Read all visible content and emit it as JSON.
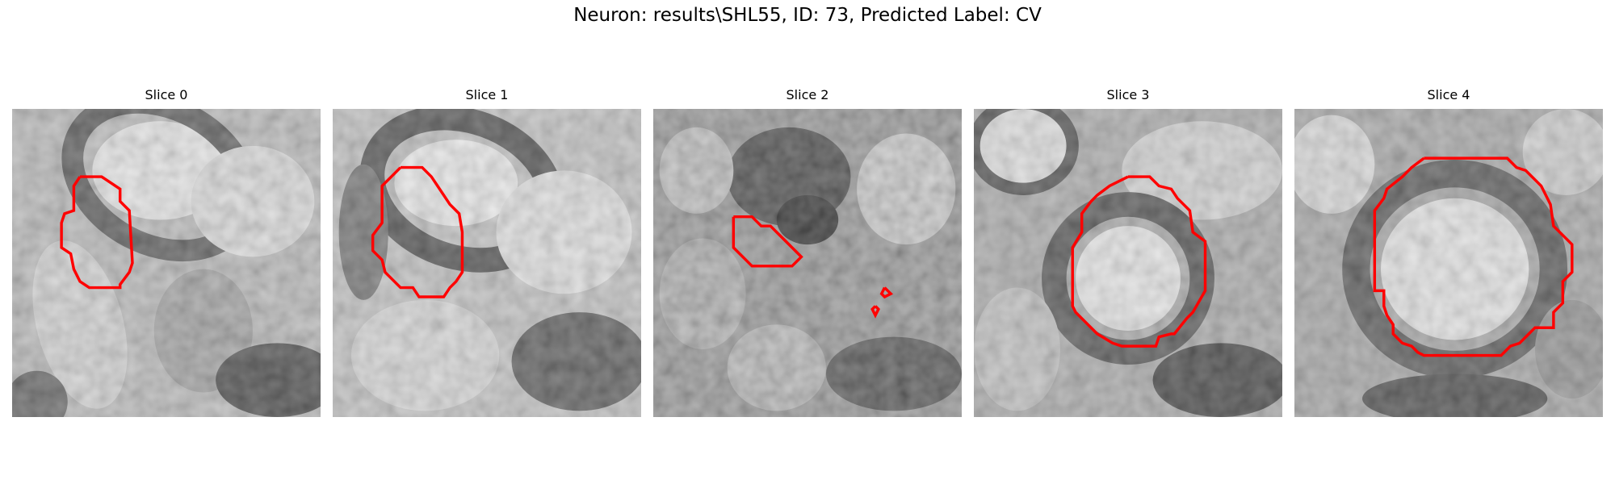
{
  "figure": {
    "title": "Neuron: results\\SHL55, ID: 73, Predicted Label: CV"
  },
  "colors": {
    "contour": "#ff0000",
    "background": "#ffffff"
  },
  "panels": [
    {
      "title": "Slice 0"
    },
    {
      "title": "Slice 1"
    },
    {
      "title": "Slice 2"
    },
    {
      "title": "Slice 3"
    },
    {
      "title": "Slice 4"
    }
  ]
}
